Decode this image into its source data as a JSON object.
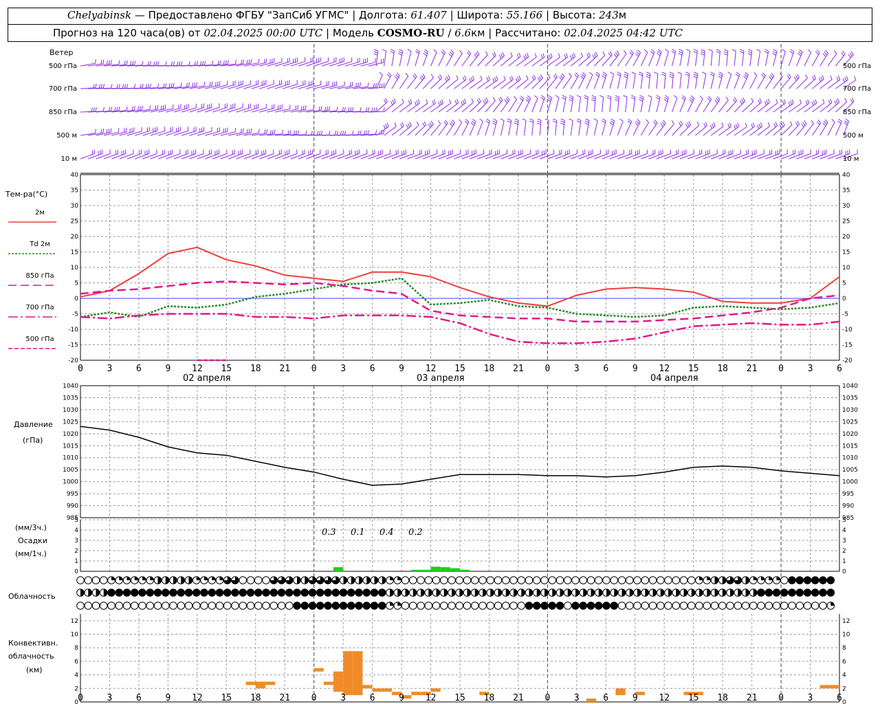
{
  "header": {
    "city": "Chelyabinsk",
    "provider": " — Предоставлено ФГБУ \"ЗапСиб УГМС\"",
    "lon_label": "Долгота:",
    "lon_value": "61.407",
    "lat_label": "Широта:",
    "lat_value": "55.166",
    "alt_label": "Высота:",
    "alt_value": "243",
    "alt_unit": "м",
    "forecast_label": "Прогноз на 120 часа(ов) от",
    "forecast_from": "02.04.2025 00:00 UTC",
    "model_label": "Модель",
    "model_name": "COSMO-RU",
    "model_res": "6.6",
    "model_res_unit": "км",
    "calc_label": "Рассчитано:",
    "calc_value": "02.04.2025 04:42 UTC"
  },
  "wind_panel": {
    "title": "Ветер",
    "levels": [
      "500 гПа",
      "700 гПа",
      "850 гПа",
      "500 м",
      "10  м"
    ],
    "right_levels": [
      "500 гПа",
      "700 гПа",
      "850 гПа",
      "500 м",
      "10  м"
    ]
  },
  "legend": {
    "title": "Тем-ра(°C)",
    "items": [
      {
        "label": "2м",
        "color": "#f03c3c",
        "style": "solid"
      },
      {
        "label": "Td 2м",
        "color": "#228b22",
        "style": "dotted"
      },
      {
        "label": "850 гПа",
        "color": "#e6148c",
        "style": "dashed"
      },
      {
        "label": "700 гПа",
        "color": "#e6148c",
        "style": "dashdot"
      },
      {
        "label": "500 гПа",
        "color": "#e6148c",
        "style": "shortdash"
      }
    ]
  },
  "axes": {
    "x_ticks": [
      "0",
      "3",
      "6",
      "9",
      "12",
      "15",
      "18",
      "21",
      "0",
      "3",
      "6",
      "9",
      "12",
      "15",
      "18",
      "21",
      "0",
      "3",
      "6",
      "9",
      "12",
      "15",
      "18",
      "21",
      "0",
      "3",
      "6"
    ],
    "day_labels": [
      "02 апреля",
      "03 апреля",
      "04 апреля"
    ],
    "temp_ticks": [
      "40",
      "35",
      "30",
      "25",
      "20",
      "15",
      "10",
      "5",
      "0",
      "-5",
      "-10",
      "-15",
      "-20"
    ],
    "pres_ticks": [
      "1040",
      "1035",
      "1030",
      "1025",
      "1020",
      "1015",
      "1010",
      "1005",
      "1000",
      "995",
      "990",
      "985"
    ],
    "precip_ticks": [
      "5",
      "4",
      "3",
      "2",
      "1",
      "0"
    ],
    "conv_ticks": [
      "12",
      "10",
      "8",
      "6",
      "4",
      "2",
      "0"
    ]
  },
  "panels": {
    "pressure_label_1": "Давление",
    "pressure_label_2": "(гПа)",
    "precip_label_1": "(мм/3ч.)",
    "precip_label_2": "Осадки",
    "precip_label_3": "(мм/1ч.)",
    "cloud_label": "Облачность",
    "conv_label_1": "Конвективн.",
    "conv_label_2": "облачность",
    "conv_label_3": "(км)"
  },
  "precip_totals": [
    "0.3",
    "0.1",
    "0.4",
    "0.2"
  ],
  "colors": {
    "t2m": "#f03c3c",
    "td2m": "#228b22",
    "upper": "#e6148c",
    "wind": "#8a2be2",
    "precip": "#22cc22",
    "conv": "#f08c28",
    "zero_line": "#3c3cff",
    "pressure": "#000000"
  },
  "chart_data": [
    {
      "type": "line",
      "name": "temperature",
      "x_hours": [
        0,
        3,
        6,
        9,
        12,
        15,
        18,
        21,
        24,
        27,
        30,
        33,
        36,
        39,
        42,
        45,
        48,
        51,
        54,
        57,
        60,
        63,
        66,
        69,
        72,
        75,
        78
      ],
      "ylim": [
        -20,
        40
      ],
      "series": [
        {
          "name": "2м",
          "values": [
            0.5,
            2.5,
            8,
            14.5,
            16.5,
            12.5,
            10.5,
            7.5,
            6.5,
            5.5,
            8.5,
            8.5,
            7,
            3.5,
            0.5,
            -1.5,
            -2.5,
            1,
            3,
            3.5,
            3,
            2,
            -1,
            -1.5,
            -1.5,
            0,
            7
          ]
        },
        {
          "name": "Td 2м",
          "values": [
            -6,
            -4.5,
            -6,
            -2.5,
            -3,
            -2,
            0.5,
            1.5,
            3,
            4.5,
            5,
            6.5,
            -2,
            -1.5,
            -0.5,
            -2.5,
            -3,
            -5,
            -5.5,
            -6,
            -5.5,
            -3,
            -2.5,
            -3,
            -3.5,
            -3,
            -1.5
          ]
        },
        {
          "name": "850 гПа",
          "values": [
            1.5,
            2.5,
            3,
            4,
            5,
            5.5,
            5,
            4.5,
            5,
            4,
            2.5,
            1.5,
            -4,
            -5.5,
            -6,
            -6.5,
            -6.5,
            -7.5,
            -7.5,
            -7.5,
            -7,
            -6.5,
            -5.5,
            -4.5,
            -3,
            0,
            1
          ]
        },
        {
          "name": "700 гПа",
          "values": [
            -6,
            -6.5,
            -5.5,
            -5,
            -5,
            -5,
            -6,
            -6,
            -6.5,
            -5.5,
            -5.5,
            -5.5,
            -6,
            -8,
            -11.5,
            -14,
            -14.5,
            -14.5,
            -14,
            -13,
            -11,
            -9,
            -8.5,
            -8,
            -8.5,
            -8.5,
            -7.5
          ]
        },
        {
          "name": "500 гПа",
          "values": [
            null,
            null,
            null,
            null,
            -20,
            -20,
            null,
            null,
            null,
            null,
            null,
            null,
            null,
            null,
            null,
            null,
            null,
            null,
            null,
            null,
            null,
            null,
            null,
            null,
            null,
            null,
            null
          ]
        }
      ]
    },
    {
      "type": "line",
      "name": "pressure",
      "x_hours": [
        0,
        3,
        6,
        9,
        12,
        15,
        18,
        21,
        24,
        27,
        30,
        33,
        36,
        39,
        42,
        45,
        48,
        51,
        54,
        57,
        60,
        63,
        66,
        69,
        72,
        75,
        78
      ],
      "ylim": [
        985,
        1040
      ],
      "series": [
        {
          "name": "Давление",
          "values": [
            1023,
            1021.5,
            1018.5,
            1014.5,
            1012,
            1011,
            1008.5,
            1006,
            1004,
            1001,
            998.5,
            999,
            1001,
            1003,
            1003,
            1003,
            1002.5,
            1002.5,
            1002,
            1002.5,
            1004,
            1006,
            1006.5,
            1006,
            1004.5,
            1003.5,
            1002.5
          ]
        }
      ]
    },
    {
      "type": "bar",
      "name": "precipitation",
      "ylim": [
        0,
        5
      ],
      "x_hours": [
        26,
        34,
        35,
        36,
        37,
        38,
        39
      ],
      "values": [
        0.4,
        0.15,
        0.15,
        0.45,
        0.4,
        0.3,
        0.15
      ]
    },
    {
      "type": "bar",
      "name": "convective_cloud",
      "ylim": [
        0,
        13
      ],
      "bars": [
        {
          "x": 17,
          "base": 2.5,
          "top": 3
        },
        {
          "x": 18,
          "base": 2,
          "top": 3
        },
        {
          "x": 19,
          "base": 2.5,
          "top": 3
        },
        {
          "x": 24,
          "base": 4.5,
          "top": 5
        },
        {
          "x": 25,
          "base": 2.5,
          "top": 3
        },
        {
          "x": 26,
          "base": 1.5,
          "top": 4.5
        },
        {
          "x": 27,
          "base": 1,
          "top": 7.5
        },
        {
          "x": 28,
          "base": 1,
          "top": 7.5
        },
        {
          "x": 29,
          "base": 2,
          "top": 2.5
        },
        {
          "x": 30,
          "base": 1.5,
          "top": 2
        },
        {
          "x": 31,
          "base": 1.5,
          "top": 2
        },
        {
          "x": 32,
          "base": 1,
          "top": 1.5
        },
        {
          "x": 33,
          "base": 0.5,
          "top": 1
        },
        {
          "x": 34,
          "base": 1,
          "top": 1.5
        },
        {
          "x": 35,
          "base": 1,
          "top": 1.5
        },
        {
          "x": 36,
          "base": 1.5,
          "top": 2
        },
        {
          "x": 41,
          "base": 1,
          "top": 1.5
        },
        {
          "x": 52,
          "base": 0,
          "top": 0.5
        },
        {
          "x": 55,
          "base": 1,
          "top": 2
        },
        {
          "x": 57,
          "base": 1,
          "top": 1.5
        },
        {
          "x": 62,
          "base": 1,
          "top": 1.5
        },
        {
          "x": 63,
          "base": 1,
          "top": 1.5
        },
        {
          "x": 76,
          "base": 2,
          "top": 2.5
        },
        {
          "x": 77,
          "base": 2,
          "top": 2.5
        }
      ]
    },
    {
      "type": "table",
      "name": "cloudiness",
      "rows": [
        "00001111112222211113300003332233332222221100000000000000000000000000000000000000112233211110444444",
        "22224444444444444444444444444444444444442222222222222222222222222222222222222222222222224444444444",
        "00000000000000000000000000004444444444441100000000000000004444404444440000000000000000000000000001"
      ]
    }
  ]
}
